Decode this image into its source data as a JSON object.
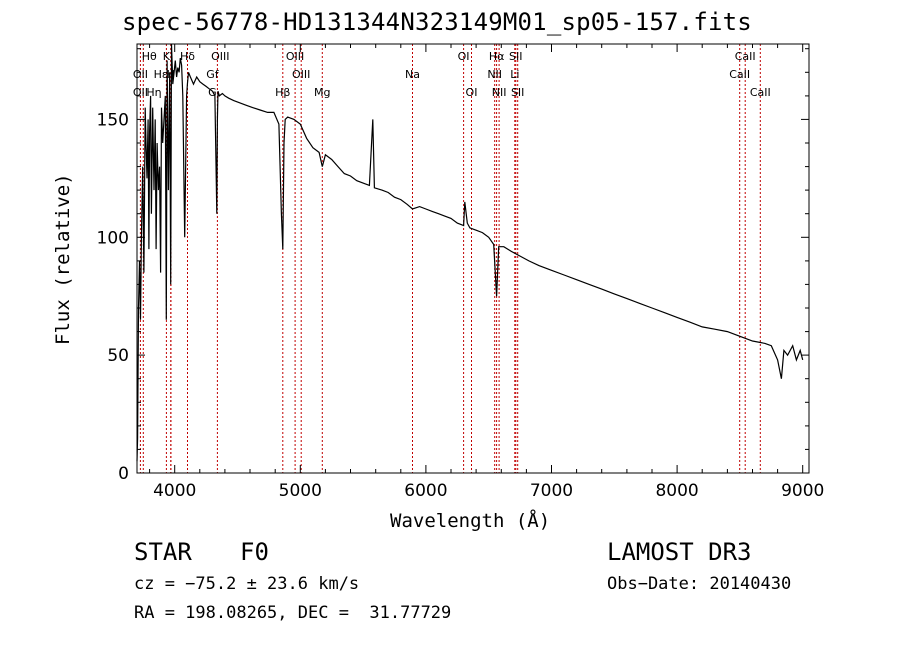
{
  "chart_data": {
    "type": "line",
    "title": "spec-56778-HD131344N323149M01_sp05-157.fits",
    "xlabel": "Wavelength (Å)",
    "ylabel": "Flux (relative)",
    "xlim": [
      3700,
      9050
    ],
    "ylim": [
      0,
      182
    ],
    "xticks": [
      4000,
      5000,
      6000,
      7000,
      8000,
      9000
    ],
    "xtick_labels": [
      "4000",
      "5000",
      "6000",
      "7000",
      "8000",
      "9000"
    ],
    "yticks": [
      0,
      50,
      100,
      150
    ],
    "ytick_labels": [
      "0",
      "50",
      "100",
      "150"
    ],
    "series": [
      {
        "name": "flux",
        "x": [
          3700,
          3705,
          3712,
          3720,
          3728,
          3735,
          3745,
          3755,
          3765,
          3772,
          3780,
          3788,
          3795,
          3800,
          3808,
          3815,
          3825,
          3835,
          3845,
          3852,
          3860,
          3870,
          3880,
          3888,
          3895,
          3905,
          3915,
          3925,
          3933,
          3940,
          3950,
          3960,
          3968,
          3975,
          3985,
          3995,
          4005,
          4015,
          4025,
          4035,
          4045,
          4055,
          4065,
          4080,
          4095,
          4101,
          4110,
          4125,
          4150,
          4175,
          4200,
          4225,
          4250,
          4275,
          4300,
          4320,
          4335,
          4340,
          4345,
          4355,
          4380,
          4400,
          4430,
          4470,
          4520,
          4570,
          4620,
          4680,
          4740,
          4790,
          4830,
          4850,
          4861,
          4870,
          4880,
          4900,
          4950,
          5000,
          5050,
          5100,
          5150,
          5175,
          5200,
          5250,
          5300,
          5350,
          5400,
          5450,
          5500,
          5550,
          5577,
          5590,
          5650,
          5700,
          5750,
          5800,
          5850,
          5893,
          5950,
          6000,
          6050,
          6100,
          6150,
          6200,
          6250,
          6300,
          6310,
          6330,
          6350,
          6400,
          6450,
          6500,
          6540,
          6563,
          6580,
          6620,
          6680,
          6750,
          6820,
          6900,
          7000,
          7100,
          7200,
          7300,
          7400,
          7500,
          7600,
          7700,
          7800,
          7900,
          8000,
          8100,
          8200,
          8300,
          8400,
          8500,
          8600,
          8700,
          8750,
          8800,
          8830,
          8850,
          8880,
          8920,
          8950,
          8980,
          9000
        ],
        "values": [
          5,
          15,
          70,
          90,
          65,
          100,
          130,
          85,
          155,
          140,
          125,
          150,
          95,
          145,
          160,
          110,
          155,
          120,
          150,
          95,
          140,
          120,
          130,
          85,
          155,
          140,
          150,
          160,
          65,
          175,
          120,
          170,
          80,
          182,
          165,
          170,
          175,
          168,
          172,
          170,
          176,
          173,
          160,
          100,
          160,
          165,
          170,
          168,
          165,
          168,
          166,
          165,
          164,
          163,
          162,
          160,
          110,
          150,
          162,
          160,
          161,
          160,
          159,
          158,
          157,
          156,
          155,
          154,
          153,
          153,
          148,
          110,
          95,
          140,
          150,
          151,
          150,
          148,
          142,
          138,
          136,
          130,
          135,
          133,
          130,
          127,
          126,
          124,
          123,
          122,
          150,
          121,
          120,
          119,
          117,
          116,
          114,
          112,
          113,
          112,
          111,
          110,
          109,
          108,
          106,
          105,
          115,
          106,
          104,
          103,
          102,
          100,
          97,
          75,
          96,
          96,
          94,
          92,
          90,
          88,
          86,
          84,
          82,
          80,
          78,
          76,
          74,
          72,
          70,
          68,
          66,
          64,
          62,
          61,
          60,
          58,
          56,
          55,
          54,
          48,
          40,
          52,
          50,
          54,
          48,
          52,
          48
        ]
      }
    ],
    "lines": [
      {
        "name": "Hα-blue-marker",
        "wavelength": 3750
      },
      {
        "name": "OII",
        "wavelength": 3727
      },
      {
        "name": "Hδ",
        "wavelength": 4102
      },
      {
        "name": "K",
        "wavelength": 3934
      },
      {
        "name": "H",
        "wavelength": 3969
      },
      {
        "name": "Hε",
        "wavelength": 3970
      },
      {
        "name": "Hγ",
        "wavelength": 4340
      },
      {
        "name": "Hβ",
        "wavelength": 4861
      },
      {
        "name": "OIII-4959",
        "wavelength": 4959
      },
      {
        "name": "OIII-5007",
        "wavelength": 5007
      },
      {
        "name": "Mg",
        "wavelength": 5175
      },
      {
        "name": "Na",
        "wavelength": 5893
      },
      {
        "name": "OI-6300",
        "wavelength": 6300
      },
      {
        "name": "OI-6363",
        "wavelength": 6363
      },
      {
        "name": "NII-6548",
        "wavelength": 6548
      },
      {
        "name": "Hα",
        "wavelength": 6563
      },
      {
        "name": "NII-6583",
        "wavelength": 6583
      },
      {
        "name": "Li",
        "wavelength": 6708
      },
      {
        "name": "SII-6716",
        "wavelength": 6716
      },
      {
        "name": "SII-6731",
        "wavelength": 6731
      },
      {
        "name": "CaII-8498",
        "wavelength": 8498
      },
      {
        "name": "CaII-8542",
        "wavelength": 8542
      },
      {
        "name": "CaII-8662",
        "wavelength": 8662
      }
    ],
    "line_labels": [
      {
        "text": "Hθ",
        "wavelength": 3797,
        "row": 1
      },
      {
        "text": "K",
        "wavelength": 3934,
        "row": 1
      },
      {
        "text": "Hδ",
        "wavelength": 4102,
        "row": 1
      },
      {
        "text": "OIII",
        "wavelength": 4363,
        "row": 1
      },
      {
        "text": "OIII",
        "wavelength": 4959,
        "row": 1
      },
      {
        "text": "OI",
        "wavelength": 6300,
        "row": 1
      },
      {
        "text": "Hα",
        "wavelength": 6563,
        "row": 1
      },
      {
        "text": "SII",
        "wavelength": 6716,
        "row": 1
      },
      {
        "text": "CaII",
        "wavelength": 8542,
        "row": 1
      },
      {
        "text": "OII",
        "wavelength": 3727,
        "row": 2
      },
      {
        "text": "Hε",
        "wavelength": 3889,
        "row": 2
      },
      {
        "text": "H",
        "wavelength": 3969,
        "row": 2
      },
      {
        "text": "Gf",
        "wavelength": 4300,
        "row": 2
      },
      {
        "text": "OIII",
        "wavelength": 5007,
        "row": 2
      },
      {
        "text": "Na",
        "wavelength": 5893,
        "row": 2
      },
      {
        "text": "NII",
        "wavelength": 6548,
        "row": 2
      },
      {
        "text": "Li",
        "wavelength": 6708,
        "row": 2
      },
      {
        "text": "CaII",
        "wavelength": 8498,
        "row": 2
      },
      {
        "text": "OII",
        "wavelength": 3727,
        "row": 3
      },
      {
        "text": "Hη",
        "wavelength": 3835,
        "row": 3
      },
      {
        "text": "G",
        "wavelength": 4300,
        "row": 3
      },
      {
        "text": "Hβ",
        "wavelength": 4861,
        "row": 3
      },
      {
        "text": "Mg",
        "wavelength": 5175,
        "row": 3
      },
      {
        "text": "OI",
        "wavelength": 6363,
        "row": 3
      },
      {
        "text": "NII",
        "wavelength": 6583,
        "row": 3
      },
      {
        "text": "SII",
        "wavelength": 6731,
        "row": 3
      },
      {
        "text": "CaII",
        "wavelength": 8662,
        "row": 3
      }
    ]
  },
  "info": {
    "obj_class": "STAR",
    "subclass": "F0",
    "survey": "LAMOST DR3",
    "cz": "cz = −75.2 ± 23.6 km/s",
    "obs_date": "Obs−Date: 20140430",
    "radec": "RA = 198.08265, DEC =  31.77729"
  },
  "colors": {
    "line": "#000000",
    "marker": "#c00000"
  }
}
